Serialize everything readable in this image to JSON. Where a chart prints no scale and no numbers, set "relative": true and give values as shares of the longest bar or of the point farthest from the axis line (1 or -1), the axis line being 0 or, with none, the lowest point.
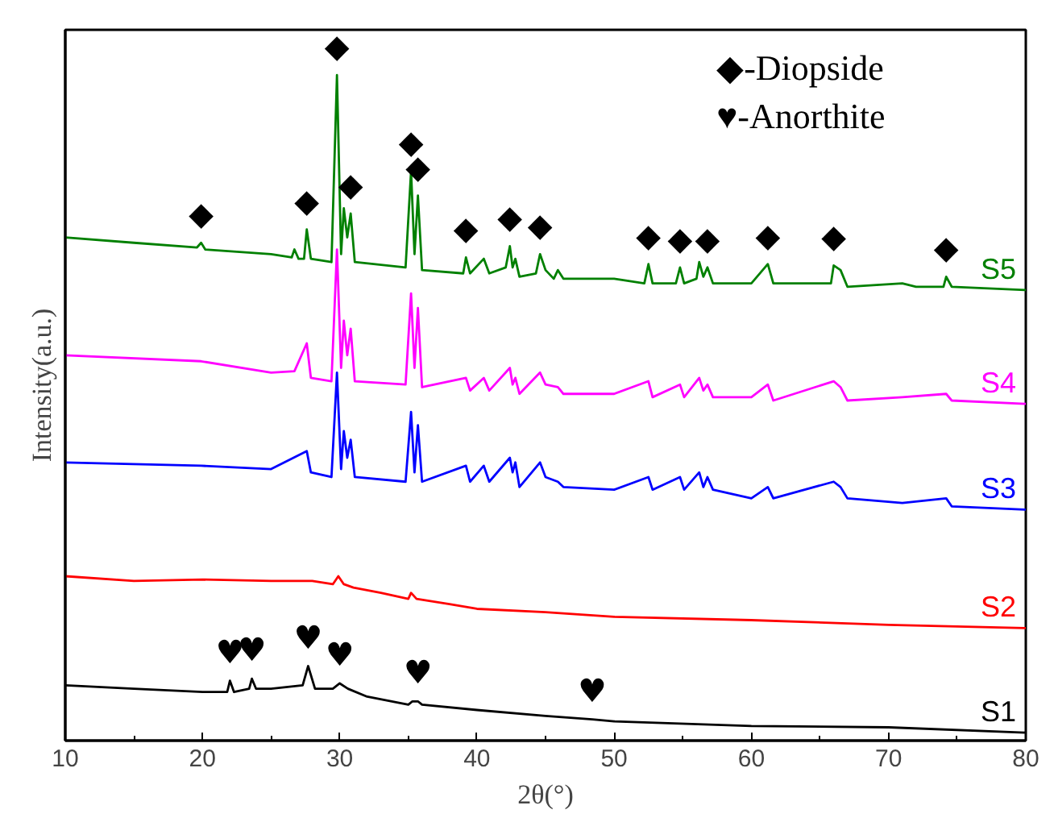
{
  "chart_data": {
    "type": "line",
    "relative": true,
    "xlabel": "2θ(°)",
    "ylabel": "Intensity(a.u.)",
    "xlim": [
      10,
      80
    ],
    "xticks": [
      10,
      20,
      30,
      40,
      50,
      60,
      70,
      80
    ],
    "tick_labels": "x",
    "grid": false,
    "marker": "none",
    "line_style": "solid",
    "series": [
      {
        "name": "S1",
        "color": "#000000",
        "x": [
          10,
          15,
          20,
          21.8,
          22,
          22.3,
          23.4,
          23.6,
          23.9,
          25,
          27.3,
          27.7,
          28.2,
          29.5,
          30,
          30.6,
          32,
          35,
          35.3,
          35.7,
          36,
          40,
          45,
          48.4,
          50,
          60,
          70,
          80
        ],
        "values": [
          0.083,
          0.078,
          0.073,
          0.073,
          0.09,
          0.073,
          0.078,
          0.093,
          0.078,
          0.078,
          0.083,
          0.112,
          0.078,
          0.078,
          0.086,
          0.078,
          0.066,
          0.054,
          0.059,
          0.059,
          0.054,
          0.046,
          0.037,
          0.032,
          0.029,
          0.022,
          0.02,
          0.012
        ]
      },
      {
        "name": "S2",
        "color": "#ff0000",
        "x": [
          10,
          15,
          20,
          25,
          28,
          29.5,
          29.9,
          30.3,
          31,
          33,
          35,
          35.2,
          35.6,
          38,
          40,
          45,
          50,
          60,
          70,
          80
        ],
        "values": [
          0.247,
          0.24,
          0.242,
          0.24,
          0.24,
          0.235,
          0.247,
          0.235,
          0.23,
          0.222,
          0.213,
          0.222,
          0.213,
          0.205,
          0.198,
          0.193,
          0.186,
          0.181,
          0.174,
          0.169
        ]
      },
      {
        "name": "S3",
        "color": "#0000ff",
        "x": [
          10,
          19.9,
          25,
          27.6,
          27.9,
          29.4,
          29.8,
          30.1,
          30.3,
          30.55,
          30.8,
          31.1,
          34.8,
          35.2,
          35.45,
          35.7,
          36,
          39.2,
          39.5,
          40.5,
          40.9,
          42.4,
          42.6,
          42.8,
          43.1,
          44.6,
          45,
          45.9,
          46.3,
          50,
          52.5,
          52.8,
          54.8,
          55.1,
          56.2,
          56.5,
          56.8,
          57.2,
          60,
          61.2,
          61.6,
          66,
          66.5,
          67,
          71,
          74.2,
          74.6,
          80
        ],
        "values": [
          0.418,
          0.413,
          0.408,
          0.435,
          0.403,
          0.396,
          0.553,
          0.408,
          0.465,
          0.425,
          0.452,
          0.396,
          0.389,
          0.494,
          0.403,
          0.474,
          0.389,
          0.413,
          0.389,
          0.413,
          0.389,
          0.425,
          0.403,
          0.418,
          0.381,
          0.418,
          0.396,
          0.389,
          0.381,
          0.377,
          0.396,
          0.377,
          0.396,
          0.377,
          0.403,
          0.381,
          0.396,
          0.377,
          0.364,
          0.381,
          0.364,
          0.389,
          0.381,
          0.364,
          0.357,
          0.364,
          0.352,
          0.347
        ]
      },
      {
        "name": "S4",
        "color": "#ff00ff",
        "x": [
          10,
          19.9,
          25,
          26.7,
          27.6,
          27.9,
          29.4,
          29.8,
          30.1,
          30.3,
          30.55,
          30.8,
          31.1,
          34.8,
          35.2,
          35.45,
          35.7,
          36,
          39.2,
          39.5,
          40.5,
          40.9,
          42.4,
          42.6,
          42.8,
          43.1,
          44.6,
          45,
          45.9,
          46.3,
          50,
          52.5,
          52.8,
          54.8,
          55.1,
          56.2,
          56.5,
          56.8,
          57.2,
          60,
          61.2,
          61.6,
          66,
          66.5,
          67,
          71,
          74.2,
          74.6,
          80
        ],
        "values": [
          0.579,
          0.57,
          0.553,
          0.555,
          0.597,
          0.545,
          0.54,
          0.738,
          0.56,
          0.631,
          0.579,
          0.619,
          0.54,
          0.535,
          0.672,
          0.56,
          0.65,
          0.531,
          0.545,
          0.526,
          0.545,
          0.526,
          0.56,
          0.535,
          0.545,
          0.521,
          0.553,
          0.535,
          0.531,
          0.521,
          0.521,
          0.54,
          0.516,
          0.535,
          0.516,
          0.545,
          0.526,
          0.535,
          0.516,
          0.516,
          0.535,
          0.511,
          0.54,
          0.531,
          0.511,
          0.516,
          0.521,
          0.511,
          0.506
        ]
      },
      {
        "name": "S5",
        "color": "#008000",
        "x": [
          10,
          15,
          19.6,
          19.9,
          20.2,
          25,
          26.5,
          26.7,
          27,
          27.4,
          27.6,
          27.9,
          29.4,
          29.8,
          30.1,
          30.3,
          30.55,
          30.8,
          31.1,
          34.8,
          35.2,
          35.45,
          35.7,
          36,
          39,
          39.2,
          39.5,
          40.5,
          40.9,
          42.1,
          42.4,
          42.6,
          42.8,
          43.1,
          44.3,
          44.6,
          45,
          45.6,
          45.9,
          46.3,
          50,
          52.2,
          52.5,
          52.8,
          54.5,
          54.8,
          55.1,
          56,
          56.2,
          56.5,
          56.8,
          57.2,
          60,
          61.2,
          61.6,
          65.8,
          66,
          66.5,
          67,
          71,
          72,
          74,
          74.2,
          74.6,
          80
        ],
        "values": [
          0.756,
          0.748,
          0.741,
          0.748,
          0.738,
          0.731,
          0.726,
          0.738,
          0.724,
          0.724,
          0.768,
          0.724,
          0.719,
          1.0,
          0.731,
          0.8,
          0.756,
          0.792,
          0.719,
          0.711,
          0.856,
          0.731,
          0.819,
          0.707,
          0.702,
          0.726,
          0.702,
          0.724,
          0.702,
          0.711,
          0.743,
          0.711,
          0.724,
          0.697,
          0.702,
          0.731,
          0.707,
          0.694,
          0.707,
          0.694,
          0.694,
          0.687,
          0.716,
          0.687,
          0.687,
          0.711,
          0.687,
          0.694,
          0.719,
          0.697,
          0.711,
          0.687,
          0.687,
          0.716,
          0.687,
          0.687,
          0.714,
          0.707,
          0.682,
          0.687,
          0.682,
          0.682,
          0.697,
          0.682,
          0.677
        ]
      }
    ],
    "annotations": [
      "◆-Diopside",
      "♥-Anorthite",
      {
        "text": "◆",
        "x": 19.9,
        "y": 0.748
      },
      {
        "text": "◆",
        "x": 27.6,
        "y": 0.768
      },
      {
        "text": "◆",
        "x": 29.8,
        "y": 1.0
      },
      {
        "text": "◆",
        "x": 30.8,
        "y": 0.792
      },
      {
        "text": "◆",
        "x": 35.2,
        "y": 0.856
      },
      {
        "text": "◆",
        "x": 35.7,
        "y": 0.819
      },
      {
        "text": "◆",
        "x": 39.2,
        "y": 0.726
      },
      {
        "text": "◆",
        "x": 42.4,
        "y": 0.743
      },
      {
        "text": "◆",
        "x": 44.6,
        "y": 0.731
      },
      {
        "text": "◆",
        "x": 52.5,
        "y": 0.716
      },
      {
        "text": "◆",
        "x": 54.8,
        "y": 0.711
      },
      {
        "text": "◆",
        "x": 56.8,
        "y": 0.711
      },
      {
        "text": "◆",
        "x": 61.2,
        "y": 0.716
      },
      {
        "text": "◆",
        "x": 66,
        "y": 0.714
      },
      {
        "text": "◆",
        "x": 74.2,
        "y": 0.697
      },
      {
        "text": "♥",
        "x": 22,
        "y": 0.09
      },
      {
        "text": "♥",
        "x": 23.6,
        "y": 0.093
      },
      {
        "text": "♥",
        "x": 27.7,
        "y": 0.112
      },
      {
        "text": "♥",
        "x": 30,
        "y": 0.086
      },
      {
        "text": "♥",
        "x": 35.7,
        "y": 0.059
      },
      {
        "text": "♥",
        "x": 48.4,
        "y": 0.032
      }
    ]
  }
}
